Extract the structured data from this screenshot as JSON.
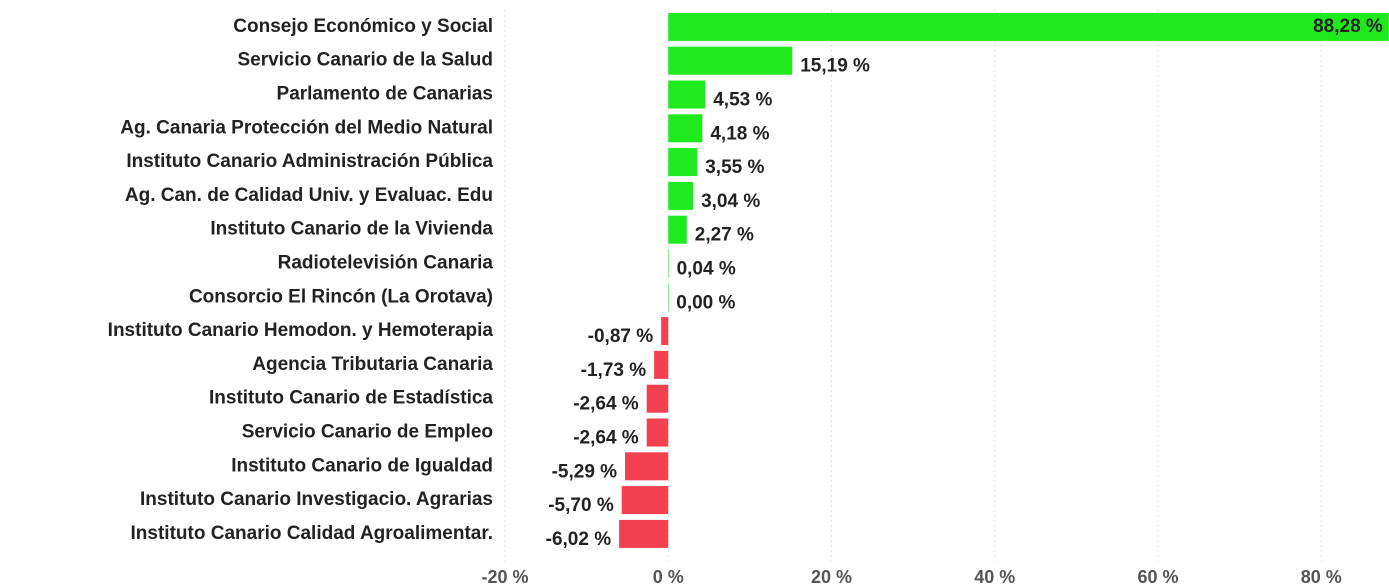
{
  "chart_data": {
    "type": "barh",
    "categories": [
      "Consejo Económico y Social",
      "Servicio Canario de la Salud",
      "Parlamento de Canarias",
      "Ag. Canaria Protección del Medio Natural",
      "Instituto Canario Administración Pública",
      "Ag. Can. de Calidad Univ. y Evaluac. Edu",
      "Instituto Canario de la Vivienda",
      "Radiotelevisión Canaria",
      "Consorcio El Rincón (La Orotava)",
      "Instituto Canario Hemodon. y Hemoterapia",
      "Agencia Tributaria Canaria",
      "Instituto Canario de Estadística",
      "Servicio Canario de Empleo",
      "Instituto Canario de Igualdad",
      "Instituto Canario Investigacio. Agrarias",
      "Instituto Canario Calidad Agroalimentar."
    ],
    "values": [
      88.28,
      15.19,
      4.53,
      4.18,
      3.55,
      3.04,
      2.27,
      0.04,
      0.0,
      -0.87,
      -1.73,
      -2.64,
      -2.64,
      -5.29,
      -5.7,
      -6.02
    ],
    "value_labels": [
      "88,28 %",
      "15,19 %",
      "4,53 %",
      "4,18 %",
      "3,55 %",
      "3,04 %",
      "2,27 %",
      "0,04 %",
      "0,00 %",
      "-0,87 %",
      "-1,73 %",
      "-2,64 %",
      "-2,64 %",
      "-5,29 %",
      "-5,70 %",
      "-6,02 %"
    ],
    "positive_color": "#1eea1e",
    "negative_color": "#f2404f",
    "xlim": [
      -20,
      88.3
    ],
    "xticks": [
      {
        "value": -20,
        "label": "-20 %"
      },
      {
        "value": 0,
        "label": "0 %"
      },
      {
        "value": 20,
        "label": "20 %"
      },
      {
        "value": 40,
        "label": "40 %"
      },
      {
        "value": 60,
        "label": "60 %"
      },
      {
        "value": 80,
        "label": "80 %"
      }
    ],
    "grid": true
  }
}
